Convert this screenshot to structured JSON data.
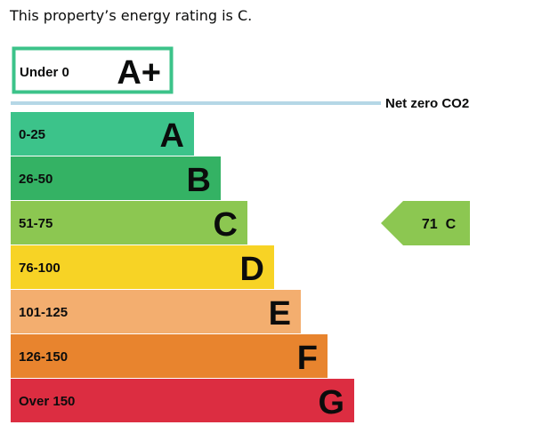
{
  "intro_text": "This property’s energy rating is C.",
  "colors": {
    "aplus_border": "#3cc38a",
    "netzero_line": "#b5d7e6",
    "A": "#3cc38a",
    "B": "#34b264",
    "C": "#8cc751",
    "D": "#f7d325",
    "E": "#f3ae6f",
    "F": "#e8842e",
    "G": "#dc2d41"
  },
  "chart_data": {
    "type": "bar",
    "aplus_band": {
      "range": "Under 0",
      "letter": "A+"
    },
    "net_zero_label": "Net zero CO2",
    "bands": [
      {
        "letter": "A",
        "range": "0-25",
        "value": 25
      },
      {
        "letter": "B",
        "range": "26-50",
        "value": 50
      },
      {
        "letter": "C",
        "range": "51-75",
        "value": 75
      },
      {
        "letter": "D",
        "range": "76-100",
        "value": 100
      },
      {
        "letter": "E",
        "range": "101-125",
        "value": 125
      },
      {
        "letter": "F",
        "range": "126-150",
        "value": 150
      },
      {
        "letter": "G",
        "range": "Over 150",
        "value": 175
      }
    ],
    "current_rating": {
      "score": 71,
      "letter": "C",
      "band": "C"
    },
    "current_text": "71  C"
  }
}
